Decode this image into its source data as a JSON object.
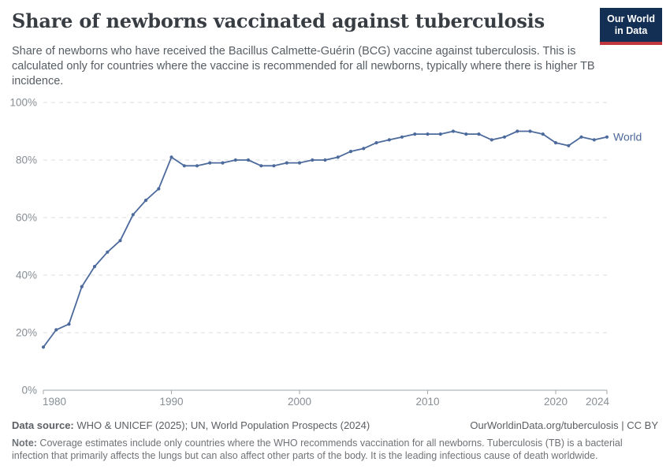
{
  "header": {
    "title": "Share of newborns vaccinated against tuberculosis",
    "subtitle": "Share of newborns who have received the Bacillus Calmette-Guérin (BCG) vaccine against tuberculosis. This is calculated only for countries where the vaccine is recommended for all newborns, typically where there is higher TB incidence.",
    "logo": {
      "line1": "Our World",
      "line2": "in Data",
      "bg_color": "#132f53",
      "stripe_color": "#c0363c"
    }
  },
  "chart_data": {
    "type": "line",
    "title": "Share of newborns vaccinated against tuberculosis",
    "xlabel": "",
    "ylabel": "",
    "xlim": [
      1980,
      2024
    ],
    "ylim": [
      0,
      100
    ],
    "x_ticks": [
      1980,
      1990,
      2000,
      2010,
      2020,
      2024
    ],
    "y_ticks": [
      0,
      20,
      40,
      60,
      80,
      100
    ],
    "y_tick_suffix": "%",
    "grid": "horizontal-dashed",
    "legend_position": "end-of-line-label",
    "series": [
      {
        "name": "World",
        "color": "#4c6a9c",
        "x": [
          1980,
          1981,
          1982,
          1983,
          1984,
          1985,
          1986,
          1987,
          1988,
          1989,
          1990,
          1991,
          1992,
          1993,
          1994,
          1995,
          1996,
          1997,
          1998,
          1999,
          2000,
          2001,
          2002,
          2003,
          2004,
          2005,
          2006,
          2007,
          2008,
          2009,
          2010,
          2011,
          2012,
          2013,
          2014,
          2015,
          2016,
          2017,
          2018,
          2019,
          2020,
          2021,
          2022,
          2023,
          2024
        ],
        "values": [
          15,
          21,
          23,
          36,
          43,
          48,
          52,
          61,
          66,
          70,
          81,
          78,
          78,
          79,
          79,
          80,
          80,
          78,
          78,
          79,
          79,
          80,
          80,
          81,
          83,
          84,
          86,
          87,
          88,
          89,
          89,
          89,
          90,
          89,
          89,
          87,
          88,
          90,
          90,
          89,
          86,
          85,
          88,
          87,
          88
        ]
      }
    ]
  },
  "footer": {
    "data_source_label": "Data source:",
    "data_source_text": " WHO & UNICEF (2025); UN, World Population Prospects (2024)",
    "license_text": "OurWorldinData.org/tuberculosis | CC BY",
    "note_label": "Note:",
    "note_text": " Coverage estimates include only countries where the WHO recommends vaccination for all newborns. Tuberculosis (TB) is a bacterial infection that primarily affects the lungs but can also affect other parts of the body. It is the leading infectious cause of death worldwide."
  }
}
